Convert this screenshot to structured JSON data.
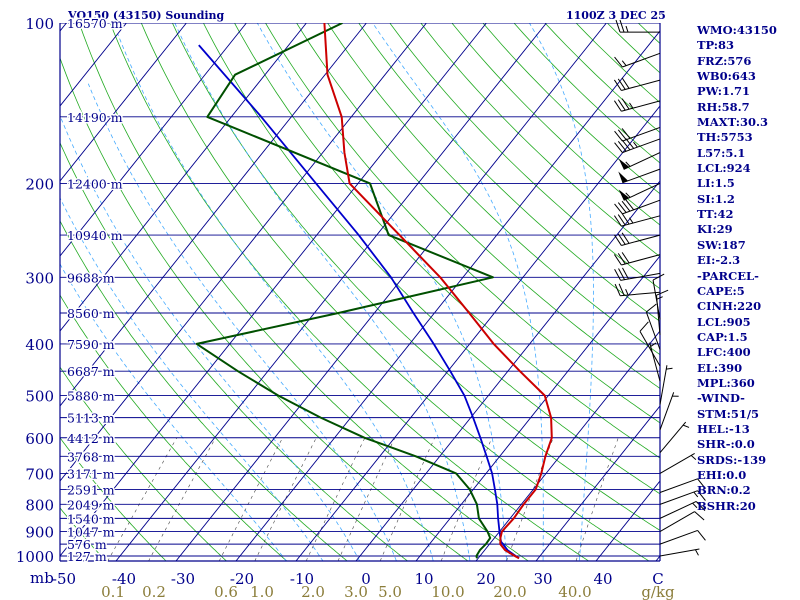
{
  "chart_data": {
    "type": "skew-t log-p sounding",
    "title_left": "VQ150 (43150) Sounding",
    "title_right": "1100Z  3 DEC 25",
    "pressure_axis_label": "mb",
    "pressure_ticks": [
      100,
      200,
      300,
      400,
      500,
      600,
      700,
      800,
      900,
      1000
    ],
    "temperature_ticks": [
      "-50",
      "-40",
      "-30",
      "-20",
      "-10",
      "0",
      "10",
      "20",
      "30",
      "40",
      "C"
    ],
    "mixing_ratio_ticks": [
      "0.1",
      "0.2",
      "0.6",
      "1.0",
      "2.0",
      "3.0",
      "5.0",
      "10.0",
      "20.0",
      "40.0",
      "g/kg"
    ],
    "mixing_ratio_values": [
      0.1,
      0.2,
      0.6,
      1.0,
      2.0,
      3.0,
      5.0,
      10.0,
      20.0,
      40.0
    ],
    "height_labels": [
      {
        "p": 100,
        "label": "16570 m"
      },
      {
        "p": 150,
        "label": "14190 m"
      },
      {
        "p": 200,
        "label": "12400 m"
      },
      {
        "p": 250,
        "label": "10940 m"
      },
      {
        "p": 300,
        "label": "9688 m"
      },
      {
        "p": 350,
        "label": "8560 m"
      },
      {
        "p": 400,
        "label": "7590 m"
      },
      {
        "p": 450,
        "label": "6687 m"
      },
      {
        "p": 500,
        "label": "5880 m"
      },
      {
        "p": 550,
        "label": "5113 m"
      },
      {
        "p": 600,
        "label": "4412 m"
      },
      {
        "p": 650,
        "label": "3768 m"
      },
      {
        "p": 700,
        "label": "3171 m"
      },
      {
        "p": 750,
        "label": "2591 m"
      },
      {
        "p": 800,
        "label": "2049 m"
      },
      {
        "p": 850,
        "label": "1540 m"
      },
      {
        "p": 900,
        "label": "1047 m"
      },
      {
        "p": 950,
        "label": "576 m"
      },
      {
        "p": 1000,
        "label": "127 m"
      }
    ],
    "temperature_profile": [
      [
        1010,
        26.8
      ],
      [
        1000,
        25.8
      ],
      [
        975,
        23.4
      ],
      [
        950,
        21.8
      ],
      [
        925,
        21.0
      ],
      [
        900,
        20.4
      ],
      [
        850,
        20.6
      ],
      [
        800,
        20.4
      ],
      [
        750,
        20.4
      ],
      [
        700,
        19.2
      ],
      [
        650,
        17.6
      ],
      [
        600,
        16.2
      ],
      [
        550,
        13.4
      ],
      [
        500,
        9.4
      ],
      [
        450,
        2.0
      ],
      [
        400,
        -6.0
      ],
      [
        350,
        -14.2
      ],
      [
        300,
        -23.8
      ],
      [
        250,
        -36.2
      ],
      [
        200,
        -51.4
      ],
      [
        175,
        -56.4
      ],
      [
        150,
        -61.6
      ],
      [
        125,
        -69.6
      ],
      [
        100,
        -77.0
      ]
    ],
    "dewpoint_profile": [
      [
        1010,
        19.8
      ],
      [
        1000,
        19.4
      ],
      [
        975,
        19.2
      ],
      [
        950,
        19.4
      ],
      [
        925,
        19.3
      ],
      [
        900,
        18.0
      ],
      [
        850,
        14.8
      ],
      [
        800,
        12.6
      ],
      [
        750,
        9.4
      ],
      [
        700,
        5.0
      ],
      [
        650,
        -4.0
      ],
      [
        600,
        -15.0
      ],
      [
        550,
        -25.0
      ],
      [
        500,
        -35.0
      ],
      [
        450,
        -45.0
      ],
      [
        400,
        -55.5
      ],
      [
        350,
        -36.0
      ],
      [
        300,
        -15.0
      ],
      [
        250,
        -38.0
      ],
      [
        200,
        -48.0
      ],
      [
        150,
        -84.0
      ],
      [
        125,
        -85.0
      ],
      [
        100,
        -74.0
      ]
    ],
    "parcel_profile": [
      [
        1010,
        26.8
      ],
      [
        975,
        23.8
      ],
      [
        940,
        21.6
      ],
      [
        925,
        21.0
      ],
      [
        900,
        20.0
      ],
      [
        850,
        18.0
      ],
      [
        800,
        16.0
      ],
      [
        750,
        13.6
      ],
      [
        700,
        11.0
      ],
      [
        650,
        7.8
      ],
      [
        600,
        4.3
      ],
      [
        550,
        0.4
      ],
      [
        500,
        -4.0
      ],
      [
        450,
        -9.6
      ],
      [
        400,
        -16.0
      ],
      [
        350,
        -23.5
      ],
      [
        300,
        -32.0
      ],
      [
        250,
        -43.0
      ],
      [
        200,
        -57.0
      ],
      [
        150,
        -75.0
      ],
      [
        110,
        -95.0
      ]
    ],
    "wind_barbs": [
      {
        "p": 104,
        "dir": 270,
        "spd": 25
      },
      {
        "p": 114,
        "dir": 250,
        "spd": 15
      },
      {
        "p": 128,
        "dir": 255,
        "spd": 30
      },
      {
        "p": 140,
        "dir": 255,
        "spd": 35
      },
      {
        "p": 157,
        "dir": 250,
        "spd": 30
      },
      {
        "p": 165,
        "dir": 250,
        "spd": 45
      },
      {
        "p": 175,
        "dir": 245,
        "spd": 55
      },
      {
        "p": 188,
        "dir": 250,
        "spd": 50
      },
      {
        "p": 200,
        "dir": 245,
        "spd": 55
      },
      {
        "p": 215,
        "dir": 250,
        "spd": 40
      },
      {
        "p": 230,
        "dir": 255,
        "spd": 35
      },
      {
        "p": 250,
        "dir": 255,
        "spd": 30
      },
      {
        "p": 272,
        "dir": 255,
        "spd": 30
      },
      {
        "p": 295,
        "dir": 260,
        "spd": 30
      },
      {
        "p": 320,
        "dir": 265,
        "spd": 25
      },
      {
        "p": 360,
        "dir": 350,
        "spd": 10
      },
      {
        "p": 385,
        "dir": 355,
        "spd": 15
      },
      {
        "p": 410,
        "dir": 340,
        "spd": 10
      },
      {
        "p": 440,
        "dir": 330,
        "spd": 10
      },
      {
        "p": 470,
        "dir": 345,
        "spd": 5
      },
      {
        "p": 520,
        "dir": 10,
        "spd": 5
      },
      {
        "p": 580,
        "dir": 20,
        "spd": 5
      },
      {
        "p": 640,
        "dir": 40,
        "spd": 5
      },
      {
        "p": 700,
        "dir": 60,
        "spd": 5
      },
      {
        "p": 760,
        "dir": 70,
        "spd": 10
      },
      {
        "p": 800,
        "dir": 70,
        "spd": 15
      },
      {
        "p": 850,
        "dir": 65,
        "spd": 15
      },
      {
        "p": 900,
        "dir": 60,
        "spd": 10
      },
      {
        "p": 950,
        "dir": 70,
        "spd": 10
      },
      {
        "p": 1000,
        "dir": 80,
        "spd": 5
      }
    ],
    "colors": {
      "isobar": "#00008b",
      "isotherm": "#00008b",
      "dry_adiabat": "#22aa22",
      "moist_adiabat": "#44aaff",
      "mixing_ratio": "#444444",
      "temperature": "#cc0000",
      "dewpoint": "#005000",
      "parcel": "#0000cc",
      "label": "#00008b",
      "mixing_label": "#8b7d3a",
      "barb": "#000000"
    }
  },
  "indices": [
    "WMO:43150",
    "TP:83",
    "FRZ:576",
    "WB0:643",
    "PW:1.71",
    "RH:58.7",
    "MAXT:30.3",
    "TH:5753",
    "L57:5.1",
    "LCL:924",
    "LI:1.5",
    "SI:1.2",
    "TT:42",
    "KI:29",
    "SW:187",
    "EI:-2.3",
    "-PARCEL-",
    "CAPE:5",
    "CINH:220",
    "LCL:905",
    "CAP:1.5",
    "LFC:400",
    "EL:390",
    "MPL:360",
    "-WIND-",
    "STM:51/5",
    "HEL:-13",
    "SHR-:0.0",
    "SRDS:-139",
    "EHI:0.0",
    "BRN:0.2",
    "BSHR:20"
  ]
}
